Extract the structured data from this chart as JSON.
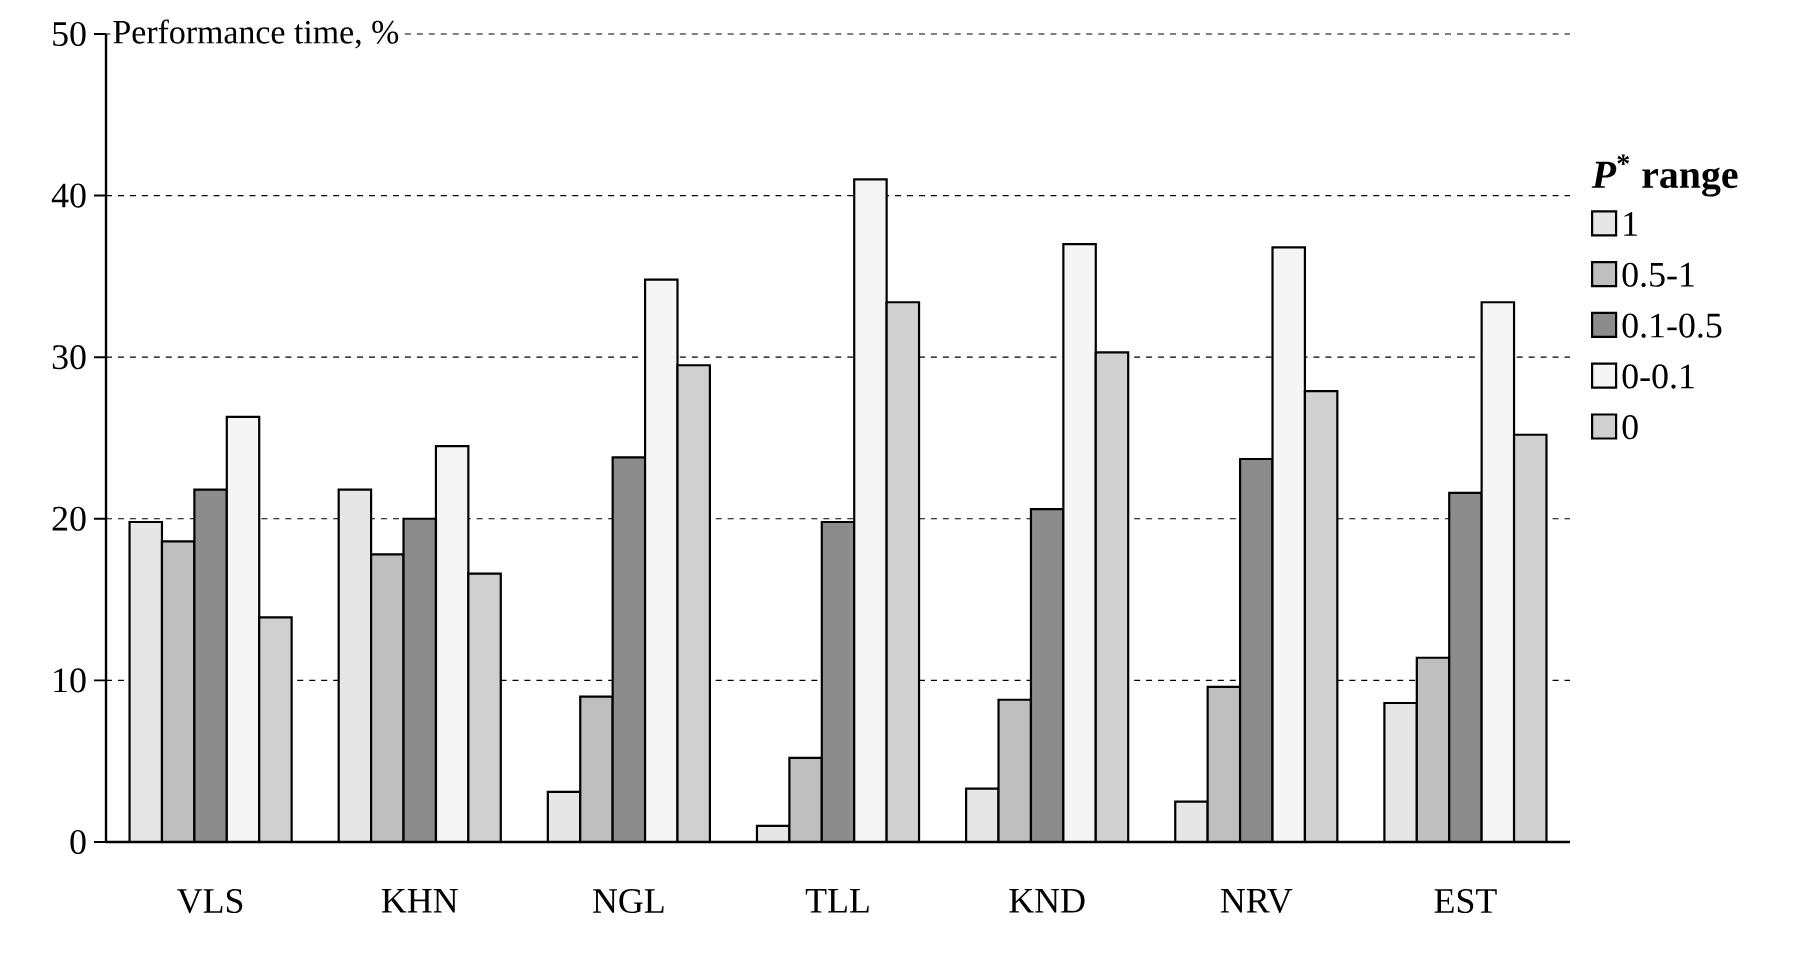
{
  "chart_data": {
    "type": "bar",
    "ylabel": "Performance time, %",
    "legend_title": "*P*$^{*}$ range",
    "categories": [
      "VLS",
      "KHN",
      "NGL",
      "TLL",
      "KND",
      "NRV",
      "EST"
    ],
    "series": [
      {
        "name": "1",
        "color": "#e6e6e6",
        "values": [
          19.8,
          21.8,
          3.1,
          1.0,
          3.3,
          2.5,
          8.6
        ]
      },
      {
        "name": "0.5-1",
        "color": "#bfbfbf",
        "values": [
          18.6,
          17.8,
          9.0,
          5.2,
          8.8,
          9.6,
          11.4
        ]
      },
      {
        "name": "0.1-0.5",
        "color": "#8c8c8c",
        "values": [
          21.8,
          20.0,
          23.8,
          19.8,
          20.6,
          23.7,
          21.6
        ]
      },
      {
        "name": "0-0.1",
        "color": "#f5f5f5",
        "values": [
          26.3,
          24.5,
          34.8,
          41.0,
          37.0,
          36.8,
          33.4
        ]
      },
      {
        "name": "0",
        "color": "#d0d0d0",
        "values": [
          13.9,
          16.6,
          29.5,
          33.4,
          30.3,
          27.9,
          25.2
        ]
      }
    ],
    "ylim": [
      0,
      50
    ],
    "yticks": [
      0,
      10,
      20,
      30,
      40,
      50
    ],
    "grid": "y",
    "legend": "right"
  }
}
